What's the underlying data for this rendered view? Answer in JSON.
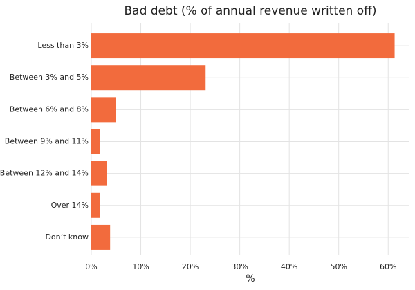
{
  "chart_data": {
    "type": "bar",
    "orientation": "horizontal",
    "title": "Bad debt (% of annual revenue written off)",
    "x_label": "%",
    "categories": [
      "Less than 3%",
      "Between 3% and 5%",
      "Between 6% and 8%",
      "Between 9% and 11%",
      "Between 12% and 14%",
      "Over 14%",
      "Don’t know"
    ],
    "values": [
      61.3,
      23.1,
      5.0,
      1.8,
      3.1,
      1.8,
      3.8
    ],
    "color": "#f26b3d",
    "xlim": [
      0,
      64.3
    ],
    "xticks": [
      {
        "value": 0,
        "label": "0%"
      },
      {
        "value": 10,
        "label": "10%"
      },
      {
        "value": 20,
        "label": "20%"
      },
      {
        "value": 30,
        "label": "30%"
      },
      {
        "value": 40,
        "label": "40%"
      },
      {
        "value": 50,
        "label": "50%"
      },
      {
        "value": 60,
        "label": "60%"
      }
    ],
    "grid": true
  }
}
